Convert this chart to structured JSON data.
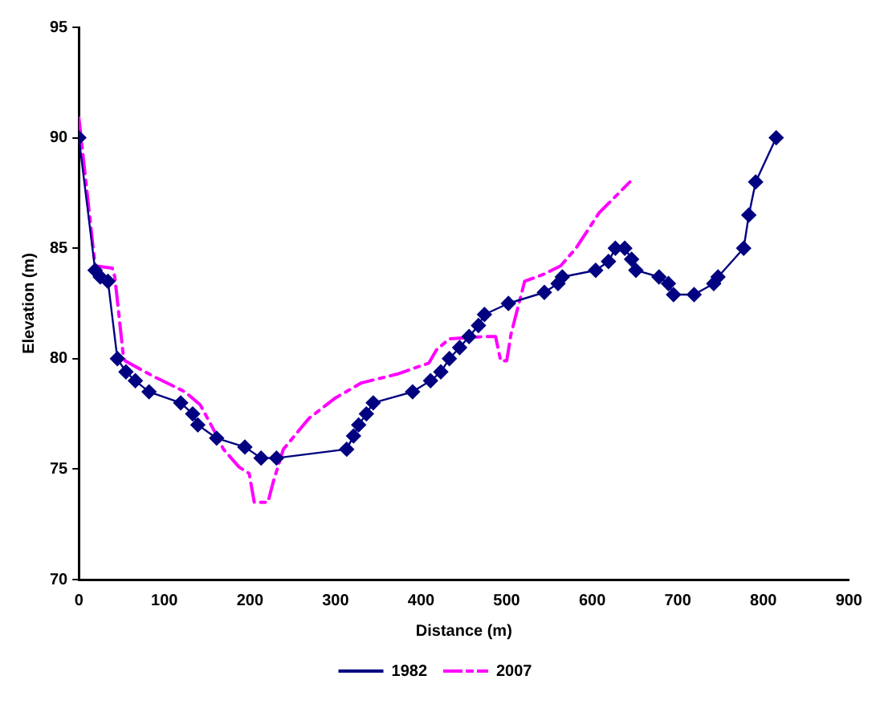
{
  "chart_data": {
    "type": "line",
    "xlabel": "Distance (m)",
    "ylabel": "Elevation (m)",
    "xlim": [
      0,
      900
    ],
    "xticks": [
      0,
      100,
      200,
      300,
      400,
      500,
      600,
      700,
      800,
      900
    ],
    "ylim": [
      70,
      95
    ],
    "yticks": [
      70,
      75,
      80,
      85,
      90,
      95
    ],
    "grid": false,
    "legend": "bottom",
    "series": [
      {
        "name": "1982",
        "color": "#000080",
        "marker": "diamond",
        "line_style": "solid",
        "x": [
          0,
          19,
          25,
          34,
          45,
          55,
          66,
          82,
          119,
          133,
          139,
          161,
          194,
          213,
          231,
          313,
          321,
          327,
          336,
          344,
          390,
          411,
          423,
          433,
          445,
          456,
          467,
          474,
          502,
          544,
          560,
          565,
          604,
          619,
          627,
          638,
          646,
          651,
          678,
          689,
          695,
          719,
          742,
          747,
          777,
          783,
          791,
          815
        ],
        "values": [
          90,
          84,
          83.7,
          83.5,
          80,
          79.4,
          79,
          78.5,
          78,
          77.5,
          77,
          76.4,
          76,
          75.5,
          75.5,
          75.9,
          76.5,
          77,
          77.5,
          78,
          78.5,
          79,
          79.4,
          80,
          80.5,
          81,
          81.5,
          82,
          82.5,
          83,
          83.4,
          83.7,
          84,
          84.4,
          85,
          85,
          84.5,
          84,
          83.7,
          83.4,
          82.9,
          82.9,
          83.4,
          83.7,
          85,
          86.5,
          88,
          90
        ]
      },
      {
        "name": "2007",
        "color": "#ff00ff",
        "marker": "none",
        "line_style": "dashed",
        "x": [
          0,
          19,
          39,
          42,
          52,
          54,
          87,
          124,
          142,
          160,
          169,
          187,
          199,
          205,
          221,
          227,
          239,
          269,
          299,
          330,
          372,
          409,
          418,
          433,
          475,
          487,
          493,
          500,
          505,
          521,
          542,
          563,
          581,
          608,
          644
        ],
        "values": [
          90.9,
          84.2,
          84.1,
          83.7,
          80.1,
          79.9,
          79.2,
          78.5,
          77.9,
          76.6,
          75.9,
          75.1,
          74.8,
          73.5,
          73.5,
          74.4,
          75.9,
          77.3,
          78.2,
          78.9,
          79.3,
          79.8,
          80.4,
          80.9,
          81,
          81,
          79.9,
          79.9,
          81.1,
          83.5,
          83.8,
          84.2,
          85,
          86.6,
          88
        ]
      }
    ]
  }
}
